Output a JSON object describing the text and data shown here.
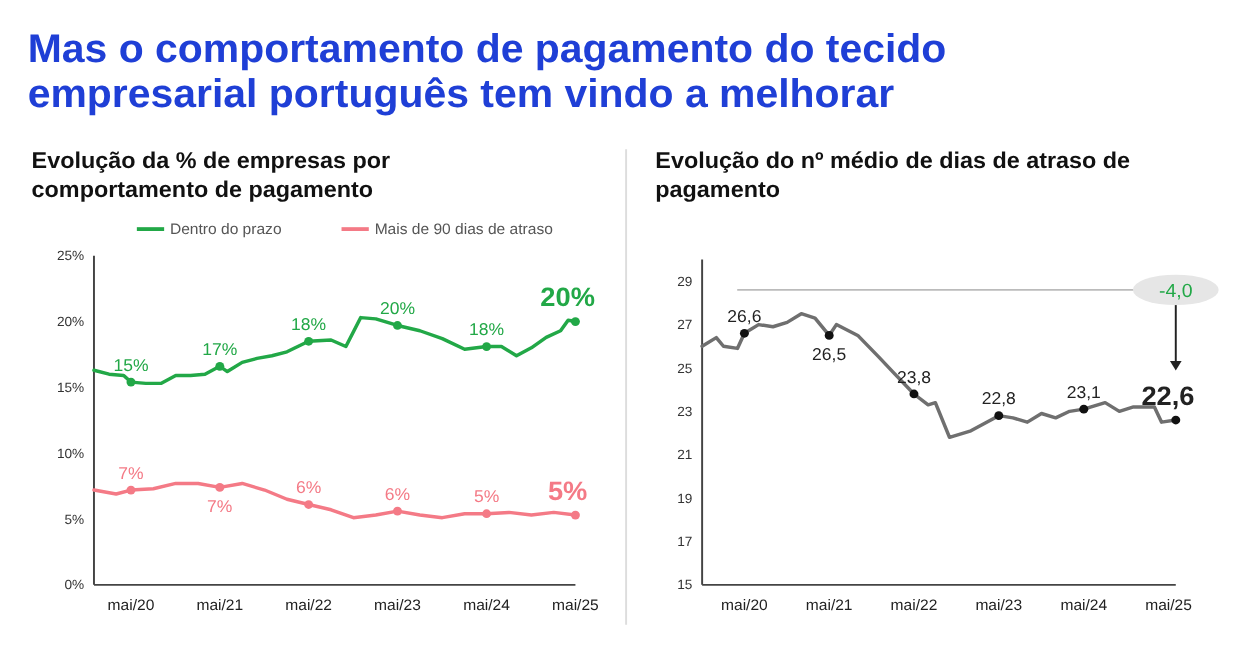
{
  "chart_data": [
    {
      "type": "line",
      "title": "Mas o comportamento de pagamento do tecido empresarial português tem vindo a melhorar",
      "subtitle": "Evolução da % de empresas por comportamento de pagamento",
      "legend": "top",
      "xlim": [
        "2019-12",
        "2025-05"
      ],
      "xticks": [
        {
          "value": "2020-05",
          "label": "mai/20"
        },
        {
          "value": "2021-05",
          "label": "mai/21"
        },
        {
          "value": "2022-05",
          "label": "mai/22"
        },
        {
          "value": "2023-05",
          "label": "mai/23"
        },
        {
          "value": "2024-05",
          "label": "mai/24"
        },
        {
          "value": "2025-05",
          "label": "mai/25"
        }
      ],
      "ylim": [
        0,
        25
      ],
      "yticks": [
        {
          "value": 0,
          "label": "0%"
        },
        {
          "value": 5,
          "label": "5%"
        },
        {
          "value": 10,
          "label": "10%"
        },
        {
          "value": 15,
          "label": "15%"
        },
        {
          "value": 20,
          "label": "20%"
        },
        {
          "value": 25,
          "label": "25%"
        }
      ],
      "series": [
        {
          "name": "Dentro do prazo",
          "color": "#22a847",
          "x": [
            "2019-12",
            "2020-02",
            "2020-04",
            "2020-05",
            "2020-07",
            "2020-09",
            "2020-11",
            "2021-01",
            "2021-03",
            "2021-05",
            "2021-06",
            "2021-08",
            "2021-10",
            "2021-12",
            "2022-02",
            "2022-05",
            "2022-08",
            "2022-10",
            "2022-12",
            "2023-02",
            "2023-05",
            "2023-08",
            "2023-11",
            "2024-02",
            "2024-05",
            "2024-07",
            "2024-09",
            "2024-11",
            "2025-01",
            "2025-03",
            "2025-04",
            "2025-05"
          ],
          "values": [
            16.3,
            16.0,
            15.9,
            15.4,
            15.3,
            15.3,
            15.9,
            15.9,
            16.0,
            16.6,
            16.2,
            16.9,
            17.2,
            17.4,
            17.7,
            18.5,
            18.6,
            18.1,
            20.3,
            20.2,
            19.7,
            19.3,
            18.7,
            17.9,
            18.1,
            18.1,
            17.4,
            18.0,
            18.8,
            19.3,
            20.1,
            20.0
          ],
          "value_labels": [
            null,
            null,
            null,
            "15%",
            null,
            null,
            null,
            null,
            null,
            "17%",
            null,
            null,
            null,
            null,
            null,
            "18%",
            null,
            null,
            null,
            null,
            "20%",
            null,
            null,
            null,
            "18%",
            null,
            null,
            null,
            null,
            null,
            null,
            "20%"
          ]
        },
        {
          "name": "Mais de 90 dias de atraso",
          "color": "#f47a86",
          "x": [
            "2019-12",
            "2020-03",
            "2020-05",
            "2020-08",
            "2020-11",
            "2021-02",
            "2021-05",
            "2021-08",
            "2021-11",
            "2022-02",
            "2022-05",
            "2022-08",
            "2022-11",
            "2023-02",
            "2023-05",
            "2023-08",
            "2023-11",
            "2024-02",
            "2024-05",
            "2024-08",
            "2024-11",
            "2025-02",
            "2025-05"
          ],
          "values": [
            7.2,
            6.9,
            7.2,
            7.3,
            7.7,
            7.7,
            7.4,
            7.7,
            7.2,
            6.5,
            6.1,
            5.7,
            5.1,
            5.3,
            5.6,
            5.3,
            5.1,
            5.4,
            5.4,
            5.5,
            5.3,
            5.5,
            5.3
          ],
          "value_labels": [
            null,
            null,
            "7%",
            null,
            null,
            null,
            "7%",
            null,
            null,
            null,
            "6%",
            null,
            null,
            null,
            "6%",
            null,
            null,
            null,
            "5%",
            null,
            null,
            null,
            "5%"
          ]
        }
      ]
    },
    {
      "type": "line",
      "title": "Evolução do nº médio de dias de atraso de pagamento",
      "xlim": [
        "2019-11",
        "2025-06"
      ],
      "xticks": [
        {
          "value": "2020-05",
          "label": "mai/20"
        },
        {
          "value": "2021-05",
          "label": "mai/21"
        },
        {
          "value": "2022-05",
          "label": "mai/22"
        },
        {
          "value": "2023-05",
          "label": "mai/23"
        },
        {
          "value": "2024-05",
          "label": "mai/24"
        },
        {
          "value": "2025-05",
          "label": "mai/25"
        }
      ],
      "ylim": [
        15,
        30
      ],
      "yticks": [
        15,
        17,
        19,
        21,
        23,
        25,
        27,
        29
      ],
      "ref_lines": [
        {
          "axis": "y",
          "value": 28.6,
          "color": "#bbbbbb"
        }
      ],
      "annotations": [
        "-4,0"
      ],
      "series": [
        {
          "color": "#6f6f6f",
          "x": [
            "2019-11",
            "2020-01",
            "2020-02",
            "2020-04",
            "2020-05",
            "2020-07",
            "2020-09",
            "2020-11",
            "2021-01",
            "2021-03",
            "2021-05",
            "2021-06",
            "2021-09",
            "2021-12",
            "2022-02",
            "2022-05",
            "2022-07",
            "2022-08",
            "2022-10",
            "2023-01",
            "2023-05",
            "2023-07",
            "2023-09",
            "2023-11",
            "2024-01",
            "2024-03",
            "2024-05",
            "2024-08",
            "2024-10",
            "2024-12",
            "2025-03",
            "2025-04",
            "2025-06"
          ],
          "values": [
            26.0,
            26.4,
            26.0,
            25.9,
            26.6,
            27.0,
            26.9,
            27.1,
            27.5,
            27.3,
            26.5,
            27.0,
            26.5,
            25.5,
            24.8,
            23.8,
            23.3,
            23.4,
            21.8,
            22.1,
            22.8,
            22.7,
            22.5,
            22.9,
            22.7,
            23.0,
            23.1,
            23.4,
            23.0,
            23.2,
            23.2,
            22.5,
            22.6
          ],
          "value_labels": [
            null,
            null,
            null,
            null,
            "26,6",
            null,
            null,
            null,
            null,
            null,
            "26,5",
            null,
            null,
            null,
            null,
            "23,8",
            null,
            null,
            null,
            null,
            "22,8",
            null,
            null,
            null,
            null,
            null,
            "23,1",
            null,
            null,
            null,
            null,
            null,
            "22,6"
          ]
        }
      ]
    }
  ]
}
